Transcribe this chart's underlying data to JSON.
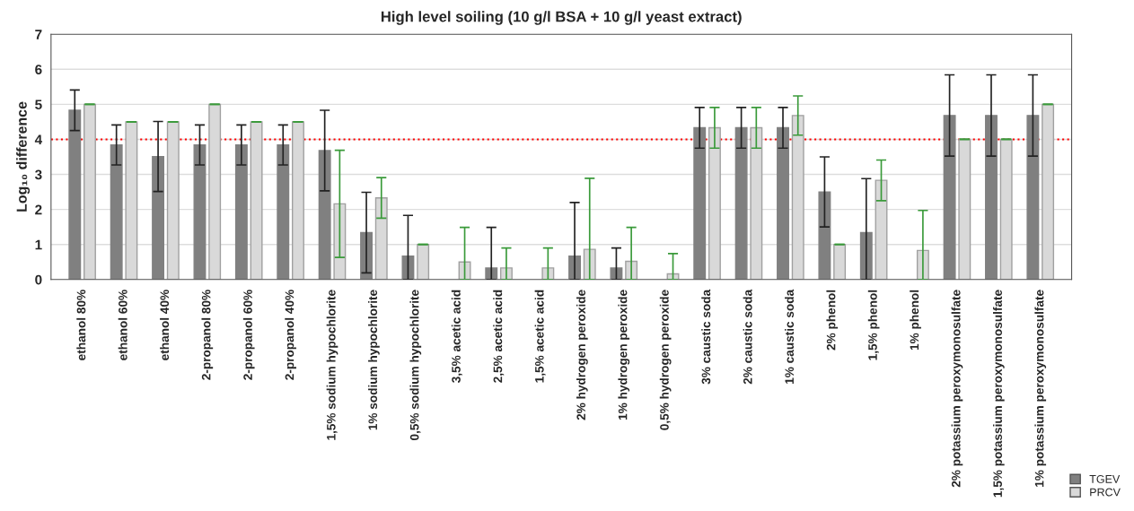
{
  "chart_data": {
    "type": "bar",
    "title": "High level soiling (10 g/l BSA + 10 g/l yeast extract)",
    "ylabel": "Log₁₀ difference",
    "categories": [
      "ethanol 80%",
      "ethanol 60%",
      "ethanol 40%",
      "2-propanol 80%",
      "2-propanol 60%",
      "2-propanol 40%",
      "1,5% sodium hypochlorite",
      "1% sodium hypochlorite",
      "0,5% sodium hypochlorite",
      "3,5% acetic acid",
      "2,5% acetic acid",
      "1,5% acetic acid",
      "2% hydrogen peroxide",
      "1% hydrogen peroxide",
      "0,5% hydrogen peroxide",
      "3% caustic soda",
      "2% caustic soda",
      "1% caustic soda",
      "2% phenol",
      "1,5% phenol",
      "1% phenol",
      "2% potassium peroxymonosulfate",
      "1,5% potassium peroxymonosulfate",
      "1% potassium peroxymonosulfate"
    ],
    "series": [
      {
        "name": "TGEV",
        "color": "#808080",
        "values": [
          4.83,
          3.84,
          3.51,
          3.84,
          3.84,
          3.84,
          3.68,
          1.34,
          0.67,
          null,
          0.33,
          null,
          0.67,
          0.33,
          null,
          4.33,
          4.33,
          4.33,
          2.5,
          1.34,
          null,
          4.68,
          4.68,
          4.68
        ],
        "errors": [
          0.58,
          0.57,
          1.0,
          0.57,
          0.57,
          0.57,
          1.15,
          1.15,
          [
            0,
            1.83
          ],
          null,
          [
            0,
            1.49
          ],
          null,
          [
            0,
            2.2
          ],
          [
            0,
            0.9
          ],
          null,
          0.58,
          0.58,
          0.58,
          1.0,
          [
            0,
            2.88
          ],
          null,
          1.16,
          1.16,
          1.16
        ]
      },
      {
        "name": "PRCV",
        "color": "#d9d9d9",
        "values": [
          5.0,
          4.5,
          4.5,
          5.0,
          4.5,
          4.5,
          2.16,
          2.33,
          1.0,
          0.5,
          0.33,
          0.33,
          0.86,
          0.52,
          0.16,
          4.33,
          4.33,
          4.68,
          1.0,
          2.83,
          0.83,
          4.0,
          4.0,
          5.0
        ],
        "errors": [
          0,
          0,
          0,
          0,
          0,
          0,
          1.53,
          0.58,
          0,
          [
            0,
            1.49
          ],
          [
            0,
            0.9
          ],
          [
            0,
            0.9
          ],
          [
            0,
            2.89
          ],
          [
            0,
            1.49
          ],
          [
            0,
            0.74
          ],
          0.58,
          0.58,
          0.56,
          0,
          0.58,
          [
            0,
            1.97
          ],
          0,
          0,
          0
        ]
      }
    ],
    "ylim": [
      0,
      7
    ],
    "yticks": [
      0,
      1,
      2,
      3,
      4,
      5,
      6,
      7
    ],
    "grid": "y",
    "legend": "bottom right",
    "ref_lines": [
      {
        "axis": "y",
        "value": 4,
        "color": "#ff0000",
        "line_style": "dotted"
      }
    ]
  }
}
